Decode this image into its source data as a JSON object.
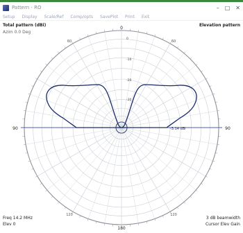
{
  "window": {
    "title": "Pattern - RO",
    "controls": [
      "–",
      "□",
      "✕"
    ]
  },
  "menu": {
    "items": [
      "Setup",
      "Display",
      "Scale/Ref",
      "Comp/opts",
      "SavePlot",
      "Print",
      "Exit"
    ]
  },
  "plot": {
    "header_left": "Total pattern (dBi)",
    "header_left_sub": "Azim 0.0 Deg",
    "header_right": "Elevation pattern",
    "footer_left_1": "Freq 14.2 MHz",
    "footer_left_2": "Elev 0",
    "footer_right_1": "3 dB beamwidth",
    "footer_right_2": "Cursor Elev  Gain",
    "angle_labels": {
      "top": "0",
      "left": "90",
      "right": "90",
      "bottom": "180",
      "upper_left": "60",
      "upper_right": "60",
      "lower_left": "120",
      "lower_right": "120"
    },
    "ring_labels": [
      "0",
      "-10",
      "-20",
      "-30"
    ],
    "cursor_readout": "-3.14 dBi"
  },
  "colors": {
    "accent": "#3a8a3e",
    "grid": "#c9ced6",
    "grid_dark": "#8c9099",
    "pattern": "#1a2a6a",
    "baseline": "#4a5fc0"
  }
}
